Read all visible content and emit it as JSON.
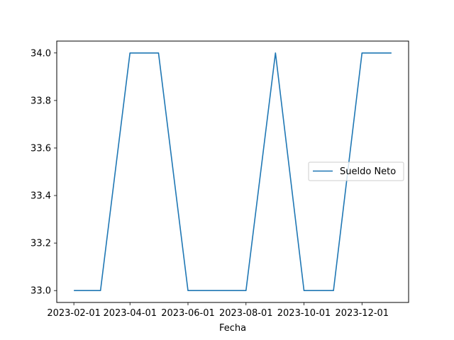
{
  "chart_data": {
    "type": "line",
    "title": "",
    "xlabel": "Fecha",
    "ylabel": "",
    "x_type": "date",
    "x": [
      "2023-02-01",
      "2023-03-01",
      "2023-04-01",
      "2023-05-01",
      "2023-06-01",
      "2023-07-01",
      "2023-08-01",
      "2023-09-01",
      "2023-10-01",
      "2023-11-01",
      "2023-12-01",
      "2024-01-01"
    ],
    "series": [
      {
        "name": "Sueldo Neto",
        "color": "#1f77b4",
        "values": [
          33.0,
          33.0,
          34.0,
          34.0,
          33.0,
          33.0,
          33.0,
          34.0,
          33.0,
          33.0,
          34.0,
          34.0
        ]
      }
    ],
    "x_ticks": [
      "2023-02-01",
      "2023-04-01",
      "2023-06-01",
      "2023-08-01",
      "2023-10-01",
      "2023-12-01"
    ],
    "y_ticks": [
      33.0,
      33.2,
      33.4,
      33.6,
      33.8,
      34.0
    ],
    "y_tick_labels": [
      "33.0",
      "33.2",
      "33.4",
      "33.6",
      "33.8",
      "34.0"
    ],
    "ylim": [
      32.95,
      34.05
    ],
    "xlim": [
      "2023-01-14",
      "2024-01-19"
    ],
    "grid": false,
    "legend_position": "center-right"
  }
}
